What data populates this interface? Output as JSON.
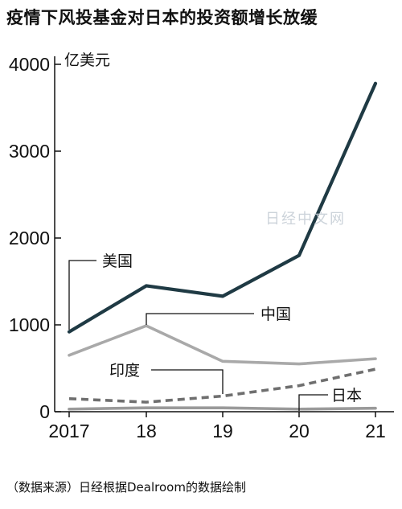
{
  "title": "疫情下风投基金对日本的投资额增长放缓",
  "source": "（数据来源）日经根据Dealroom的数据绘制",
  "watermark": "日经中文网",
  "chart_data": {
    "type": "line",
    "title": "疫情下风投基金对日本的投资额增长放缓",
    "ylabel": "亿美元",
    "xlabel": "",
    "x": [
      "2017",
      "18",
      "19",
      "20",
      "21"
    ],
    "ylim": [
      0,
      4000
    ],
    "yticks": [
      0,
      1000,
      2000,
      3000,
      4000
    ],
    "grid": false,
    "legend": "inline labels",
    "series": [
      {
        "name": "美国",
        "values": [
          920,
          1450,
          1330,
          1800,
          3780
        ],
        "color": "#1f3a44",
        "style": "solid-thick"
      },
      {
        "name": "中国",
        "values": [
          650,
          990,
          580,
          550,
          610
        ],
        "color": "#a9a9a9",
        "style": "solid"
      },
      {
        "name": "印度",
        "values": [
          150,
          110,
          180,
          300,
          490
        ],
        "color": "#6f6f6f",
        "style": "dashed"
      },
      {
        "name": "日本",
        "values": [
          30,
          45,
          45,
          30,
          40
        ],
        "color": "#9a9a9a",
        "style": "solid"
      }
    ]
  }
}
